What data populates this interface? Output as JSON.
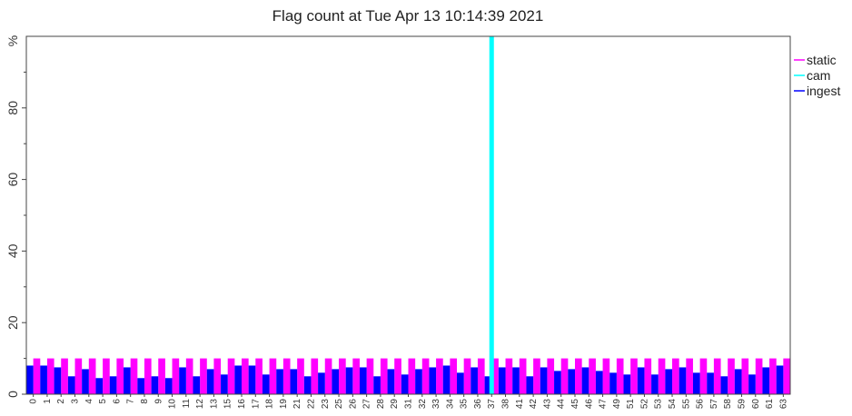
{
  "chart_data": {
    "type": "bar",
    "title": "Flag count at Tue Apr 13 10:14:39 2021",
    "ylabel": "%",
    "xlabel": "",
    "ylim": [
      0,
      100
    ],
    "yticks": [
      0,
      20,
      40,
      60,
      80
    ],
    "grid": false,
    "legend": "right",
    "categories": [
      "0",
      "1",
      "2",
      "3",
      "4",
      "5",
      "6",
      "7",
      "8",
      "9",
      "10",
      "11",
      "12",
      "13",
      "15",
      "16",
      "17",
      "18",
      "19",
      "21",
      "22",
      "23",
      "25",
      "26",
      "27",
      "28",
      "29",
      "31",
      "32",
      "33",
      "34",
      "35",
      "36",
      "37",
      "38",
      "41",
      "42",
      "43",
      "44",
      "45",
      "46",
      "47",
      "49",
      "51",
      "52",
      "53",
      "54",
      "55",
      "56",
      "57",
      "58",
      "59",
      "60",
      "61",
      "63"
    ],
    "series": [
      {
        "name": "static",
        "color": "#ff00ff",
        "values": [
          10,
          10,
          10,
          10,
          10,
          10,
          10,
          10,
          10,
          10,
          10,
          10,
          10,
          10,
          10,
          10,
          10,
          10,
          10,
          10,
          10,
          10,
          10,
          10,
          10,
          10,
          10,
          10,
          10,
          10,
          10,
          10,
          10,
          10,
          10,
          10,
          10,
          10,
          10,
          10,
          10,
          10,
          10,
          10,
          10,
          10,
          10,
          10,
          10,
          10,
          10,
          10,
          10,
          10,
          10
        ]
      },
      {
        "name": "cam",
        "color": "#00ffff",
        "values": [
          0,
          0,
          0,
          0,
          0,
          0,
          0,
          0,
          0,
          0,
          0,
          0,
          0,
          0,
          0,
          0,
          0,
          0,
          0,
          0,
          0,
          0,
          0,
          0,
          0,
          0,
          0,
          0,
          0,
          0,
          0,
          0,
          0,
          100,
          0,
          0,
          0,
          0,
          0,
          0,
          0,
          0,
          0,
          0,
          0,
          0,
          0,
          0,
          0,
          0,
          0,
          0,
          0,
          0,
          0
        ]
      },
      {
        "name": "ingest",
        "color": "#0000ff",
        "values": [
          8,
          8,
          7.5,
          5,
          7,
          4.5,
          5,
          7.5,
          4.5,
          5,
          4.5,
          7.5,
          5,
          7,
          5.5,
          8,
          8,
          5.5,
          7,
          7,
          5,
          6,
          7,
          7.5,
          7.5,
          5,
          7,
          5.5,
          7,
          7.5,
          8,
          6,
          7.5,
          5,
          7.5,
          7.5,
          5,
          7.5,
          6.5,
          7,
          7.5,
          6.5,
          6,
          5.5,
          7.5,
          5.5,
          7,
          7.5,
          6,
          6,
          5,
          7,
          5.5,
          7.5,
          8
        ]
      }
    ]
  }
}
